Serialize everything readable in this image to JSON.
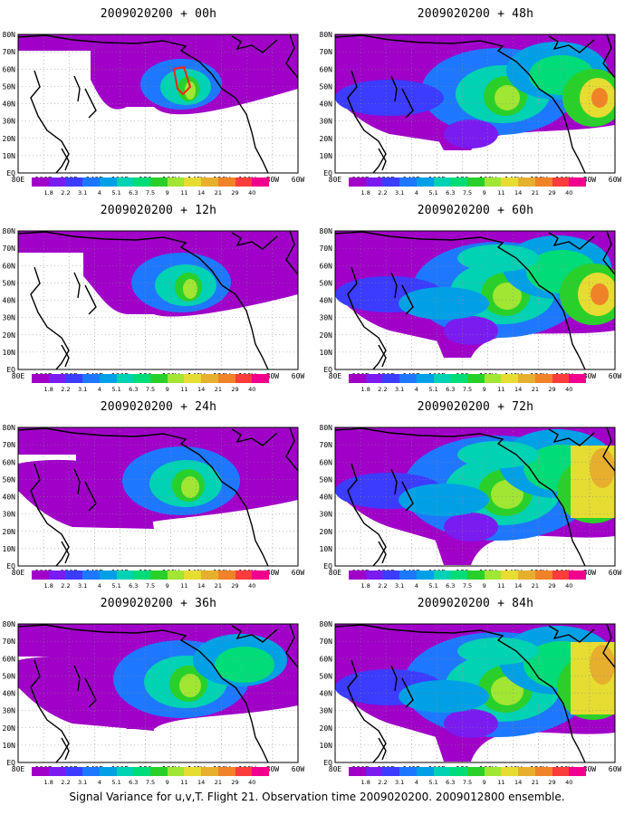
{
  "panels": [
    {
      "title": "2009020200 + 00h",
      "level": 0
    },
    {
      "title": "2009020200 + 48h",
      "level": 4
    },
    {
      "title": "2009020200 + 12h",
      "level": 1
    },
    {
      "title": "2009020200 + 60h",
      "level": 5
    },
    {
      "title": "2009020200 + 24h",
      "level": 2
    },
    {
      "title": "2009020200 + 72h",
      "level": 6
    },
    {
      "title": "2009020200 + 36h",
      "level": 3
    },
    {
      "title": "2009020200 + 84h",
      "level": 6
    }
  ],
  "lat_labels": [
    "80N",
    "70N",
    "60N",
    "50N",
    "40N",
    "30N",
    "20N",
    "10N",
    "EQ"
  ],
  "lon_labels": [
    "80E",
    "100E",
    "120E",
    "140E",
    "160E",
    "180",
    "160W",
    "140W",
    "120W",
    "100W",
    "80W",
    "60W"
  ],
  "colorbar": {
    "labels": [
      "1.8",
      "2.2",
      "3.1",
      "4",
      "5.1",
      "6.3",
      "7.5",
      "9",
      "11",
      "14",
      "21",
      "29",
      "40"
    ],
    "colors": [
      "#a000c8",
      "#7a1cf0",
      "#3c3cff",
      "#1e78ff",
      "#00a0e6",
      "#00d2b4",
      "#00dc78",
      "#2ad02a",
      "#a0e632",
      "#e6dc32",
      "#e6af2d",
      "#f08228",
      "#fa3c3c",
      "#f0008c"
    ]
  },
  "footer": "Signal Variance for u,v,T. Flight 21. Observation time 2009020200. 2009012800 ensemble."
}
